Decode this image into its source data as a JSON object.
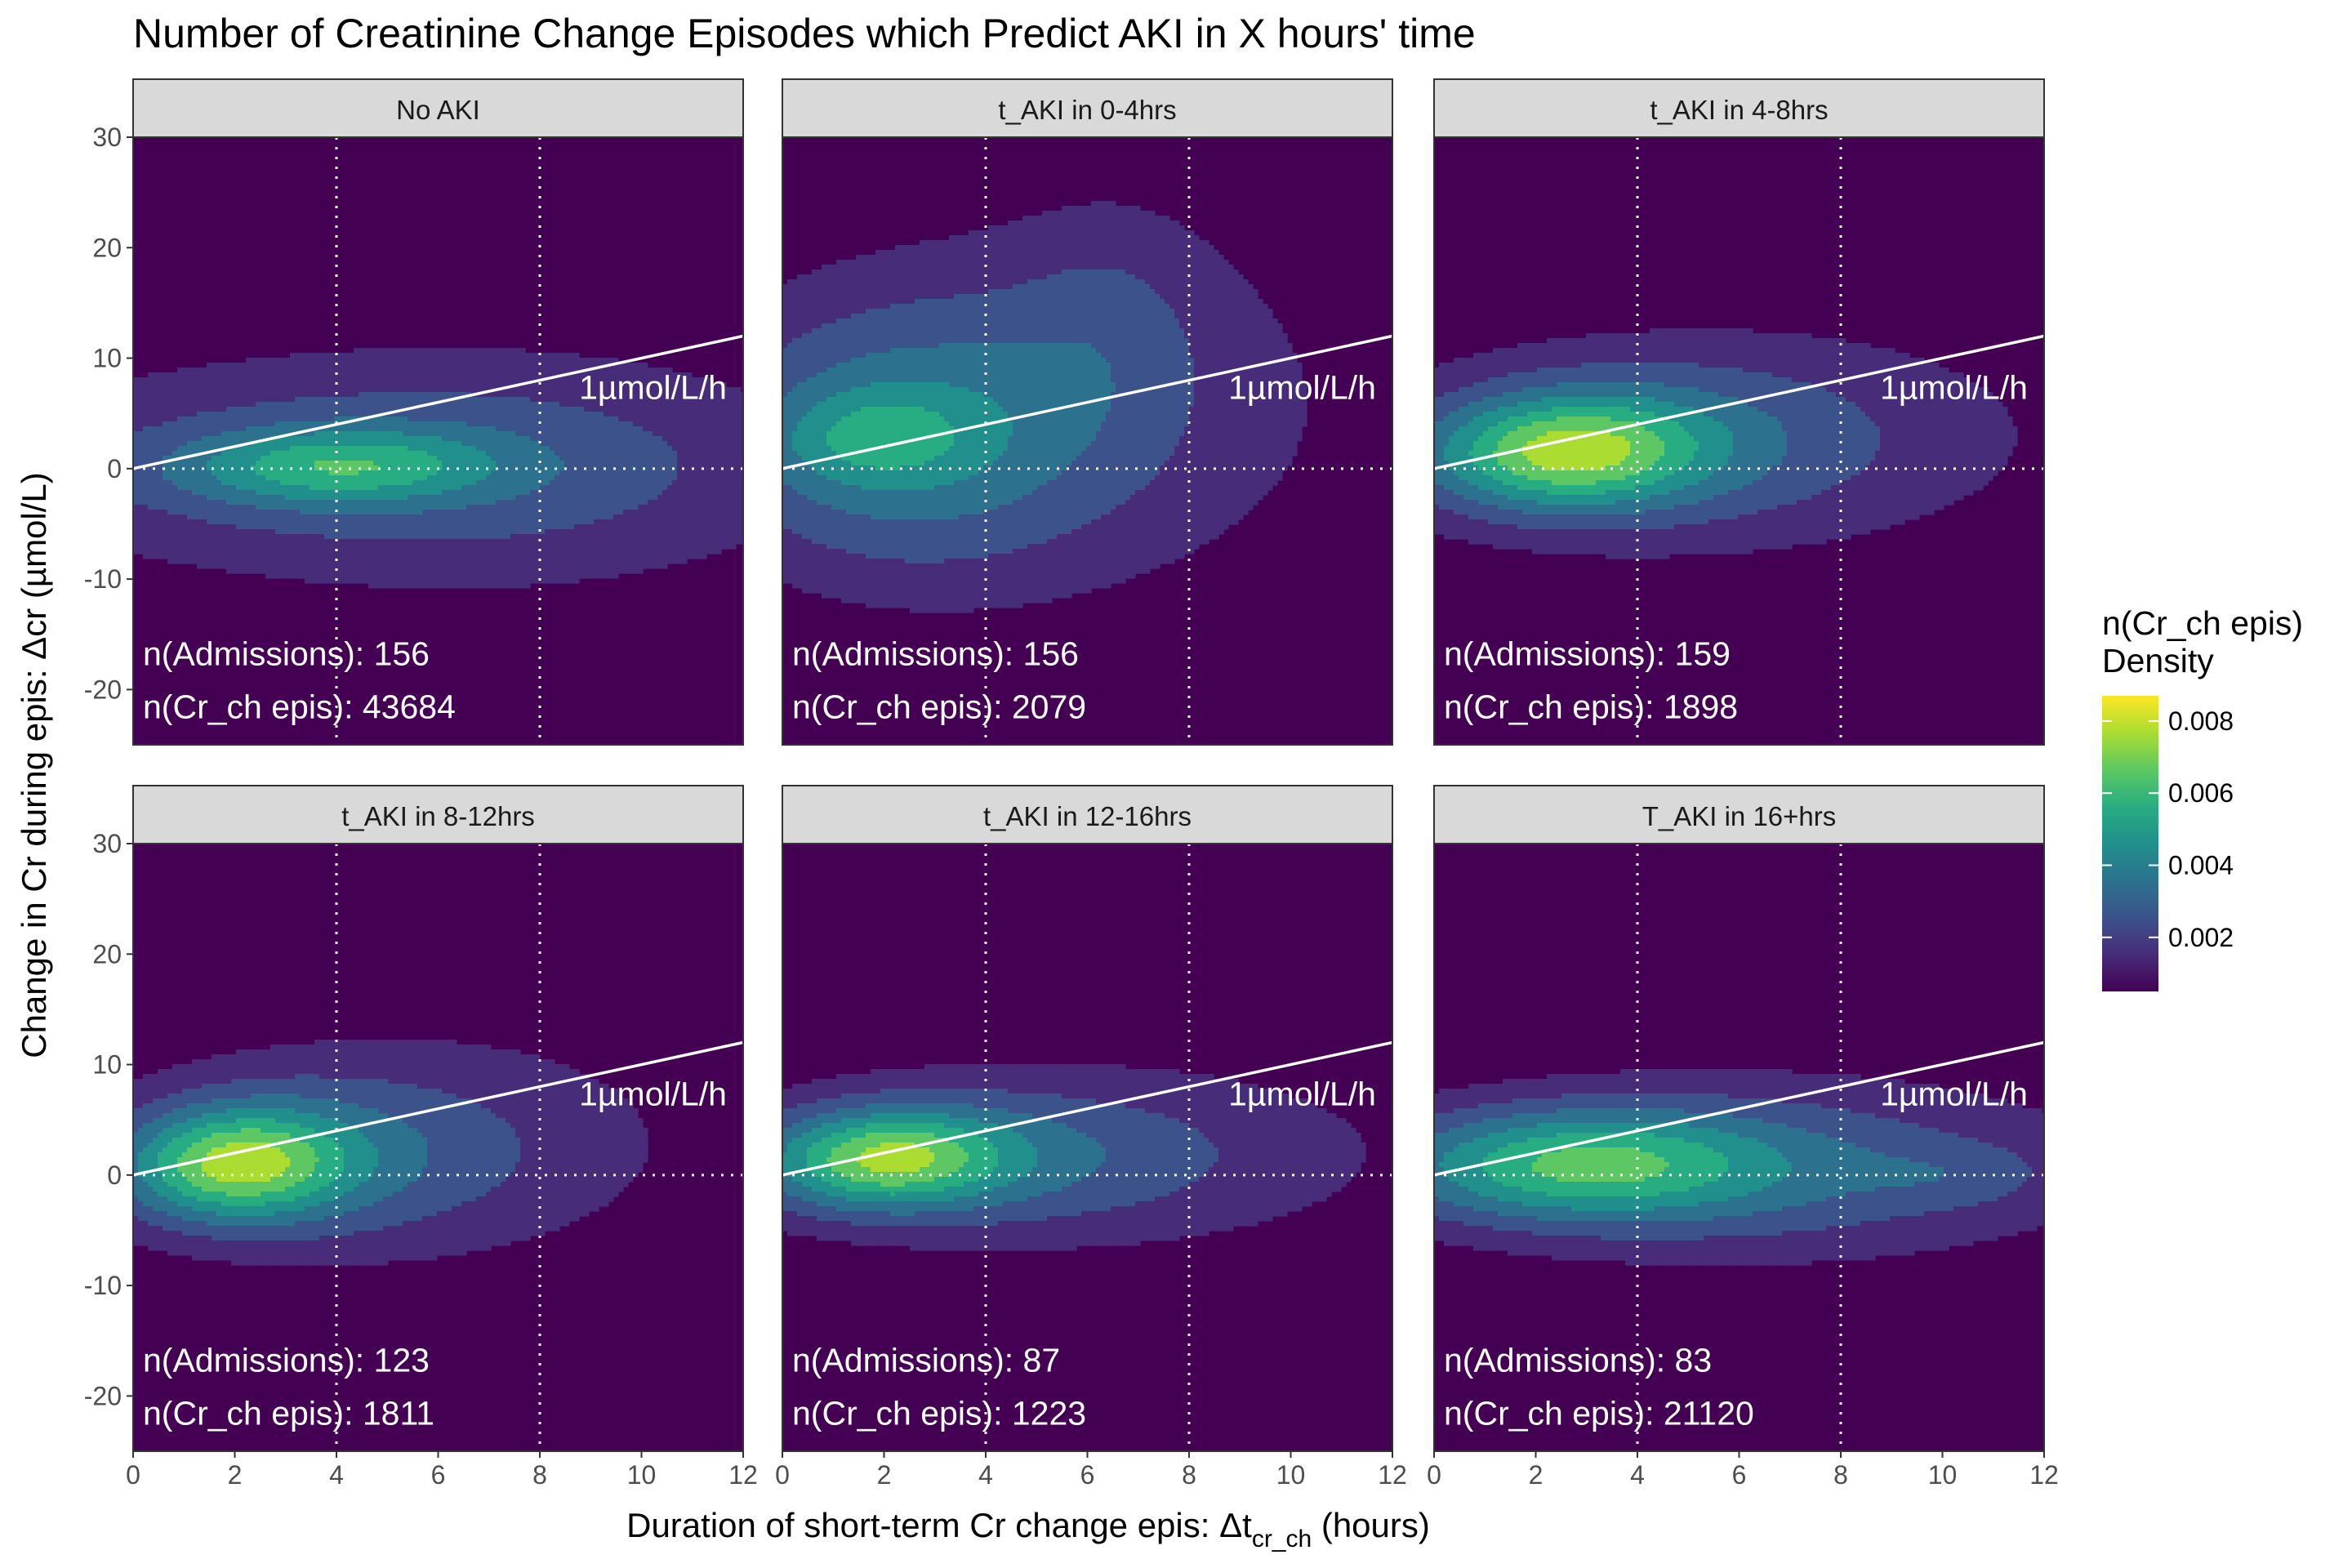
{
  "chart_data": {
    "type": "heatmap",
    "title": "Number of Creatinine Change Episodes which Predict AKI in X hours' time",
    "xlabel": {
      "main": "Duration of short-term Cr change epis: Δt",
      "sub": "cr_ch",
      "unit": " (hours)"
    },
    "ylabel": "Change in Cr during epis: Δcr (µmol/L)",
    "xlim": [
      0,
      12
    ],
    "ylim": [
      -25,
      30
    ],
    "x_ticks": [
      0,
      2,
      4,
      6,
      8,
      10,
      12
    ],
    "y_ticks": [
      -20,
      -10,
      0,
      10,
      20,
      30
    ],
    "grid": false,
    "vlines": [
      4,
      8
    ],
    "hline": 0,
    "reference_line": {
      "slope": 1,
      "intercept": 0,
      "label": "1µmol/L/h"
    },
    "legend": {
      "title_line1": "n(Cr_ch epis)",
      "title_line2": "Density",
      "placement": "right",
      "min": 0.0005,
      "max": 0.0087,
      "ticks": [
        0.002,
        0.004,
        0.006,
        0.008
      ],
      "tick_labels": [
        "0.002",
        "0.004",
        "0.006",
        "0.008"
      ],
      "colors": [
        "#440154",
        "#472c7a",
        "#3b528b",
        "#2c728e",
        "#21908c",
        "#27ad81",
        "#5dc863",
        "#aadc32",
        "#fde725"
      ]
    },
    "panels": [
      {
        "label": "No AKI",
        "admissions_label": "n(Admissions): 156",
        "episodes_label": "n(Cr_ch epis): 43684",
        "peak_x": 4.0,
        "peak_y": 0.3,
        "peak_density": 0.0068,
        "blobs": [
          [
            4.0,
            0.5,
            7.5,
            8.0,
            0.02,
            0.003
          ],
          [
            4.0,
            0.2,
            2.2,
            2.4,
            0.05,
            0.0045
          ],
          [
            7.5,
            -1,
            5,
            10,
            0.0,
            0.0015
          ]
        ]
      },
      {
        "label": "t_AKI in  0-4hrs",
        "admissions_label": "n(Admissions): 156",
        "episodes_label": "n(Cr_ch epis): 2079",
        "peak_x": 2.0,
        "peak_y": 2.5,
        "peak_density": 0.0065,
        "blobs": [
          [
            2.2,
            2.5,
            3.0,
            9,
            0.08,
            0.004
          ],
          [
            6.0,
            6.0,
            5.5,
            16,
            0.0,
            0.0025
          ],
          [
            6.5,
            14,
            1.4,
            8,
            0.0,
            0.0012
          ],
          [
            1.8,
            2.8,
            1.4,
            3.0,
            0.1,
            0.0025
          ]
        ]
      },
      {
        "label": "t_AKI in  4-8hrs",
        "admissions_label": "n(Admissions): 159",
        "episodes_label": "n(Cr_ch epis): 1898",
        "peak_x": 2.5,
        "peak_y": 1.5,
        "peak_density": 0.0085,
        "blobs": [
          [
            2.6,
            1.5,
            1.8,
            3.4,
            0.1,
            0.005
          ],
          [
            3.5,
            2.0,
            3.8,
            6.0,
            0.1,
            0.003
          ],
          [
            7.5,
            3.0,
            6.0,
            11,
            0.0,
            0.0016
          ]
        ]
      },
      {
        "label": "t_AKI in  8-12hrs",
        "admissions_label": "n(Admissions): 123",
        "episodes_label": "n(Cr_ch epis): 1811",
        "peak_x": 2.0,
        "peak_y": 1.0,
        "peak_density": 0.0085,
        "blobs": [
          [
            2.0,
            1.0,
            1.5,
            3.4,
            0.1,
            0.0055
          ],
          [
            3.2,
            1.5,
            3.3,
            6.0,
            0.1,
            0.003
          ],
          [
            7.0,
            3.5,
            5.5,
            12,
            0.0,
            0.0016
          ]
        ]
      },
      {
        "label": "t_AKI in 12-16hrs",
        "admissions_label": "n(Admissions): 87",
        "episodes_label": "n(Cr_ch epis): 1223",
        "peak_x": 1.8,
        "peak_y": 1.5,
        "peak_density": 0.0082,
        "blobs": [
          [
            2.0,
            1.5,
            1.6,
            3.0,
            0.1,
            0.005
          ],
          [
            3.5,
            1.5,
            3.8,
            5.0,
            0.05,
            0.003
          ],
          [
            8.0,
            2.0,
            6.5,
            10,
            0.0,
            0.0015
          ]
        ]
      },
      {
        "label": "T_AKI in 16+hrs",
        "admissions_label": "n(Admissions): 83",
        "episodes_label": "n(Cr_ch epis): 21120",
        "peak_x": 2.8,
        "peak_y": 1.0,
        "peak_density": 0.0072,
        "blobs": [
          [
            2.8,
            1.0,
            2.6,
            3.4,
            0.02,
            0.004
          ],
          [
            5.0,
            0.5,
            5.5,
            5.5,
            0.0,
            0.0025
          ],
          [
            10.3,
            0.0,
            1.3,
            2.0,
            0.0,
            0.0008
          ],
          [
            7.5,
            1.0,
            6.0,
            10,
            0.0,
            0.0012
          ]
        ]
      }
    ]
  }
}
